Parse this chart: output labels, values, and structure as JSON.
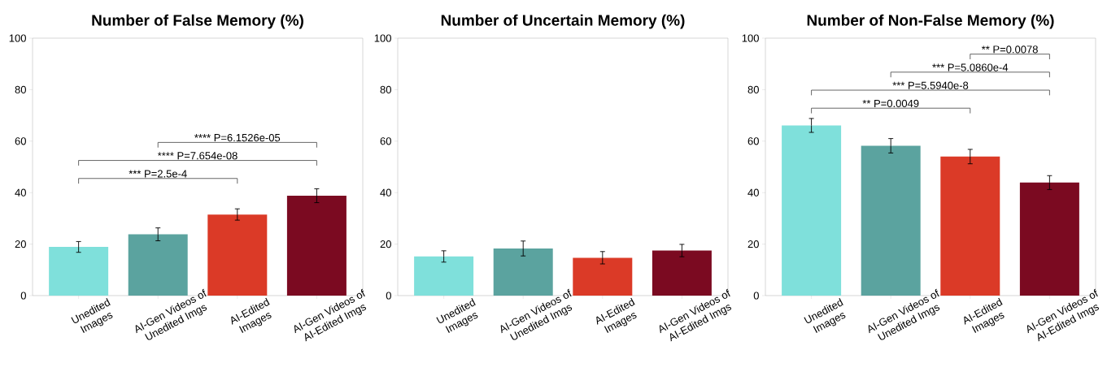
{
  "chart_data": [
    {
      "type": "bar",
      "title": "Number of False Memory (%)",
      "categories": [
        "Unedited Images",
        "AI-Gen Videos of Unedited Imgs",
        "AI-Edited Images",
        "AI-Gen Videos of AI-Edited Imgs"
      ],
      "values": [
        18.9,
        23.8,
        31.5,
        38.8
      ],
      "errors": [
        2.1,
        2.5,
        2.2,
        2.7
      ],
      "colors": [
        "#7fe0db",
        "#5ba39f",
        "#db3a27",
        "#7b0a21"
      ],
      "ylim": [
        0,
        100
      ],
      "yticks": [
        0,
        20,
        40,
        60,
        80,
        100
      ],
      "annotations": [
        "**** P=6.1526e-05",
        "**** P=7.654e-08",
        "*** P=2.5e-4"
      ]
    },
    {
      "type": "bar",
      "title": "Number of Uncertain Memory (%)",
      "categories": [
        "Unedited Images",
        "AI-Gen Videos of Unedited Imgs",
        "AI-Edited Images",
        "AI-Gen Videos of AI-Edited Imgs"
      ],
      "values": [
        15.2,
        18.3,
        14.7,
        17.5
      ],
      "errors": [
        2.2,
        2.9,
        2.4,
        2.4
      ],
      "colors": [
        "#7fe0db",
        "#5ba39f",
        "#db3a27",
        "#7b0a21"
      ],
      "ylim": [
        0,
        100
      ],
      "yticks": [
        0,
        20,
        40,
        60,
        80,
        100
      ]
    },
    {
      "type": "bar",
      "title": "Number of Non-False Memory (%)",
      "categories": [
        "Unedited Images",
        "AI-Gen Videos of Unedited Imgs",
        "AI-Edited Images",
        "AI-Gen Videos of AI-Edited Imgs"
      ],
      "values": [
        66.1,
        58.2,
        54.0,
        43.9
      ],
      "errors": [
        2.7,
        2.8,
        2.8,
        2.7
      ],
      "colors": [
        "#7fe0db",
        "#5ba39f",
        "#db3a27",
        "#7b0a21"
      ],
      "ylim": [
        0,
        100
      ],
      "yticks": [
        0,
        20,
        40,
        60,
        80,
        100
      ],
      "annotations": [
        "** P=0.0078",
        "*** P=5.0860e-4",
        "*** P=5.5940e-8",
        "** P=0.0049"
      ]
    }
  ]
}
